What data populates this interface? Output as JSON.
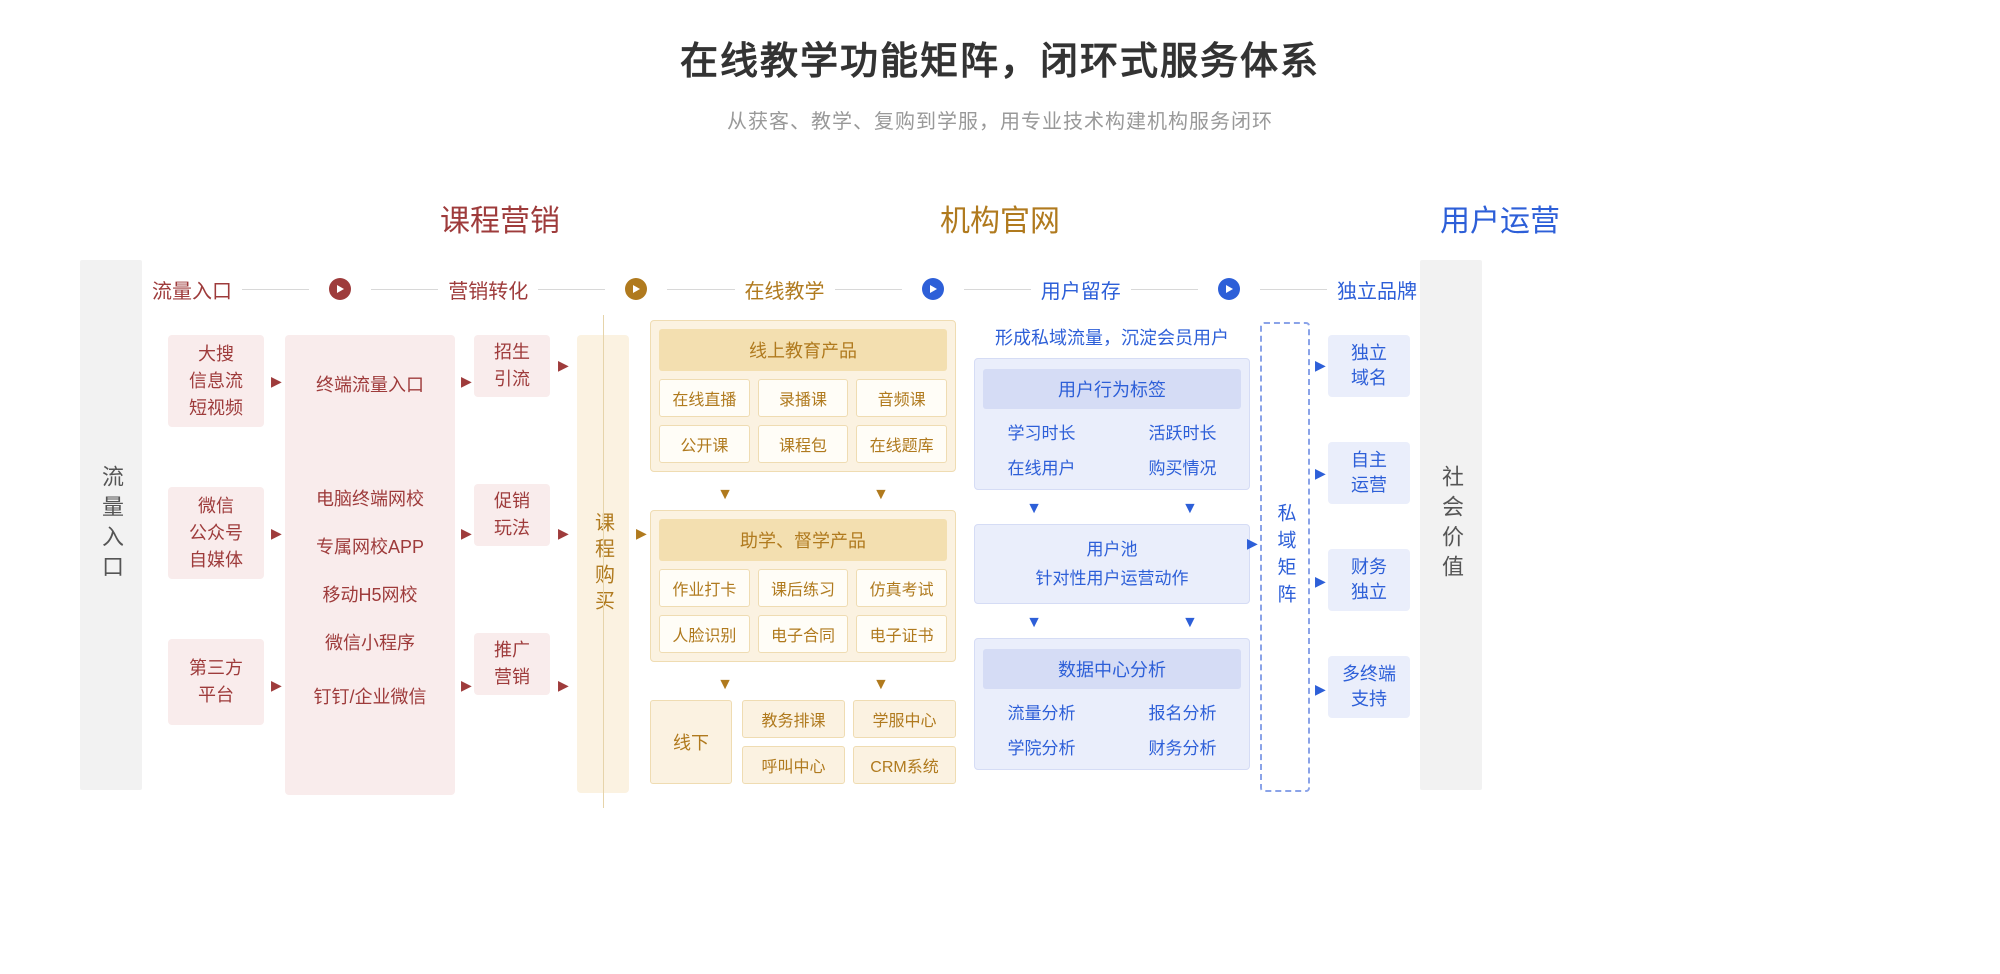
{
  "title": "在线教学功能矩阵，闭环式服务体系",
  "subtitle": "从获客、教学、复购到学服，用专业技术构建机构服务闭环",
  "sections": {
    "marketing": "课程营销",
    "website": "机构官网",
    "operations": "用户运营"
  },
  "stages": {
    "s1": "流量入口",
    "s2": "营销转化",
    "s3": "在线教学",
    "s4": "用户留存",
    "s5": "独立品牌"
  },
  "vbars": {
    "left": "流量入口",
    "right": "社会价值"
  },
  "traffic_sources": {
    "a": "大搜\n信息流\n短视频",
    "b": "微信\n公众号\n自媒体",
    "c": "第三方\n平台"
  },
  "terminals": {
    "a": "终端流量入口",
    "b1": "电脑终端网校",
    "b2": "专属网校APP",
    "b3": "移动H5网校",
    "b4": "微信小程序",
    "c": "钉钉/企业微信"
  },
  "convert": {
    "a": "招生\n引流",
    "b": "促销\n玩法",
    "c": "推广\n营销"
  },
  "orange_strip": "课程购买",
  "online_products": {
    "title": "线上教育产品",
    "items": [
      "在线直播",
      "录播课",
      "音频课",
      "公开课",
      "课程包",
      "在线题库"
    ]
  },
  "study_products": {
    "title": "助学、督学产品",
    "items": [
      "作业打卡",
      "课后练习",
      "仿真考试",
      "人脸识别",
      "电子合同",
      "电子证书"
    ]
  },
  "offline": {
    "label": "线下",
    "items": [
      "教务排课",
      "学服中心",
      "呼叫中心",
      "CRM系统"
    ]
  },
  "blue_caption": "形成私域流量，沉淀会员用户",
  "user_tags": {
    "title": "用户行为标签",
    "items": [
      "学习时长",
      "活跃时长",
      "在线用户",
      "购买情况"
    ]
  },
  "user_pool": {
    "line1": "用户池",
    "line2": "针对性用户运营动作"
  },
  "data_center": {
    "title": "数据中心分析",
    "items": [
      "流量分析",
      "报名分析",
      "学院分析",
      "财务分析"
    ]
  },
  "dashed": "私域矩阵",
  "brand_boxes": {
    "a": "独立\n域名",
    "b": "自主\n运营",
    "c": "财务\n独立",
    "d": "多终端\n支持"
  },
  "colors": {
    "red": "#9e3b3b",
    "red_bg": "#f9ecec",
    "orange": "#b07a1e",
    "orange_bg": "#fbf2e1",
    "orange_border": "#efdcb2",
    "orange_title_bg": "#f3dfb0",
    "blue": "#2d5fd8",
    "blue_bg": "#eaeefb",
    "blue_border": "#d5dcf5",
    "gray_bar": "#f2f2f2",
    "text_dark": "#333333",
    "text_gray": "#999999"
  }
}
